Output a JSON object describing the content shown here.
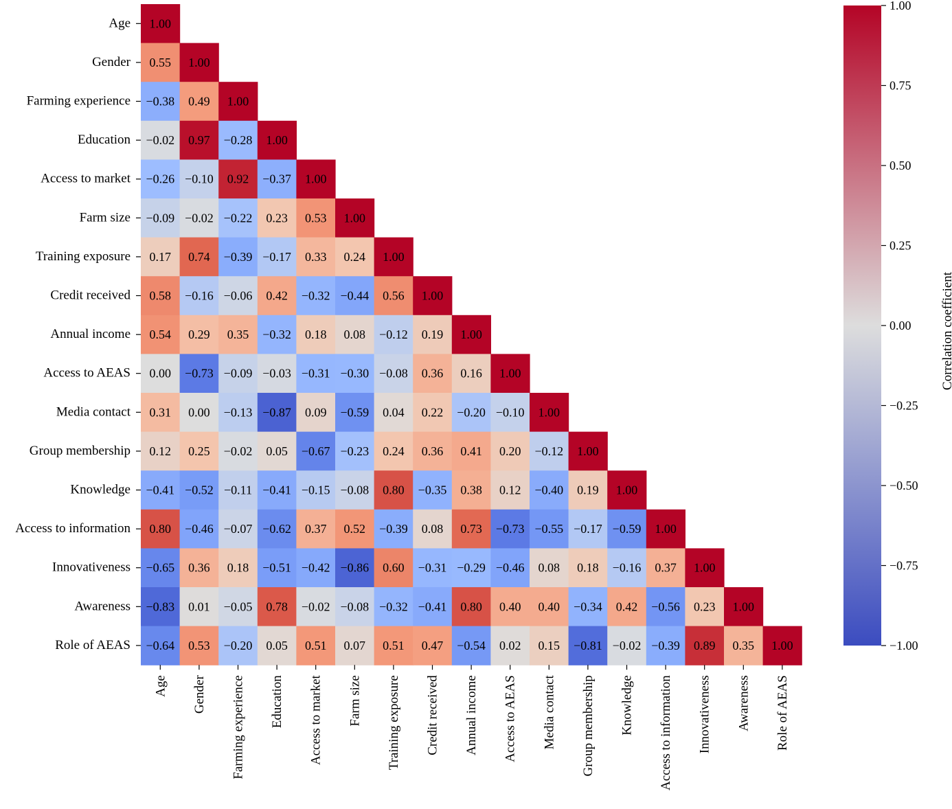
{
  "chart_data": {
    "type": "heatmap",
    "title": "",
    "xlabel": "",
    "ylabel": "",
    "mask": "upper-triangle",
    "categories": [
      "Age",
      "Gender",
      "Farming experience",
      "Education",
      "Access to market",
      "Farm size",
      "Training exposure",
      "Credit received",
      "Annual income",
      "Access to AEAS",
      "Media contact",
      "Group membership",
      "Knowledge",
      "Access to information",
      "Innovativeness",
      "Awareness",
      "Role of AEAS"
    ],
    "values": [
      [
        1.0
      ],
      [
        0.55,
        1.0
      ],
      [
        -0.38,
        0.49,
        1.0
      ],
      [
        -0.02,
        0.97,
        -0.28,
        1.0
      ],
      [
        -0.26,
        -0.1,
        0.92,
        -0.37,
        1.0
      ],
      [
        -0.09,
        -0.02,
        -0.22,
        0.23,
        0.53,
        1.0
      ],
      [
        0.17,
        0.74,
        -0.39,
        -0.17,
        0.33,
        0.24,
        1.0
      ],
      [
        0.58,
        -0.16,
        -0.06,
        0.42,
        -0.32,
        -0.44,
        0.56,
        1.0
      ],
      [
        0.54,
        0.29,
        0.35,
        -0.32,
        0.18,
        0.08,
        -0.12,
        0.19,
        1.0
      ],
      [
        0.0,
        -0.73,
        -0.09,
        -0.03,
        -0.31,
        -0.3,
        -0.08,
        0.36,
        0.16,
        1.0
      ],
      [
        0.31,
        0.0,
        -0.13,
        -0.87,
        0.09,
        -0.59,
        0.04,
        0.22,
        -0.2,
        -0.1,
        1.0
      ],
      [
        0.12,
        0.25,
        -0.02,
        0.05,
        -0.67,
        -0.23,
        0.24,
        0.36,
        0.41,
        0.2,
        -0.12,
        1.0
      ],
      [
        -0.41,
        -0.52,
        -0.11,
        -0.41,
        -0.15,
        -0.08,
        0.8,
        -0.35,
        0.38,
        0.12,
        -0.4,
        0.19,
        1.0
      ],
      [
        0.8,
        -0.46,
        -0.07,
        -0.62,
        0.37,
        0.52,
        -0.39,
        0.08,
        0.73,
        -0.73,
        -0.55,
        -0.17,
        -0.59,
        1.0
      ],
      [
        -0.65,
        0.36,
        0.18,
        -0.51,
        -0.42,
        -0.86,
        0.6,
        -0.31,
        -0.29,
        -0.46,
        0.08,
        0.18,
        -0.16,
        0.37,
        1.0
      ],
      [
        -0.83,
        0.01,
        -0.05,
        0.78,
        -0.02,
        -0.08,
        -0.32,
        -0.41,
        0.8,
        0.4,
        0.4,
        -0.34,
        0.42,
        -0.56,
        0.23,
        1.0
      ],
      [
        -0.64,
        0.53,
        -0.2,
        0.05,
        0.51,
        0.07,
        0.51,
        0.47,
        -0.54,
        0.02,
        0.15,
        -0.81,
        -0.02,
        -0.39,
        0.89,
        0.35,
        1.0
      ]
    ],
    "value_format": "2 decimals, minus sign −",
    "colormap": "coolwarm",
    "colormap_stops": [
      "#3b4cc0",
      "#dddddd",
      "#b40426"
    ],
    "vmin": -1.0,
    "vmax": 1.0,
    "colorbar": {
      "label": "Correlation coefficient",
      "ticks": [
        1.0,
        0.75,
        0.5,
        0.25,
        0.0,
        -0.25,
        -0.5,
        -0.75,
        -1.0
      ],
      "tick_labels": [
        "1.00",
        "0.75",
        "0.50",
        "0.25",
        "0.00",
        "−0.25",
        "−0.50",
        "−0.75",
        "−1.00"
      ],
      "placement": "right"
    },
    "grid": false
  }
}
